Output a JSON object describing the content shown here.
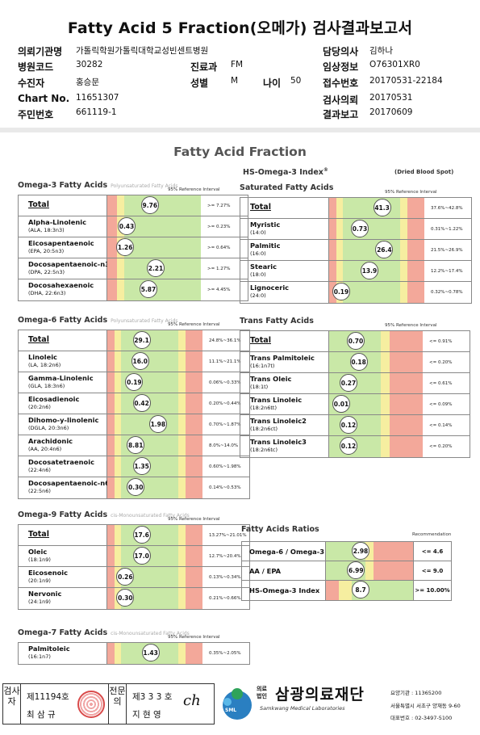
{
  "title": "Fatty Acid 5 Fraction(오메가) 검사결과보고서",
  "header": {
    "institution_label": "의뢰기관명",
    "institution_value": "가톨릭학원가톨릭대학교성빈센트병원",
    "inst_code_label": "병원코드",
    "inst_code_value": "30282",
    "collector_label": "수진자",
    "collector_value": "홍승문",
    "chart_label": "Chart No.",
    "chart_value": "11651307",
    "id_label": "주민번호",
    "id_value": "661119-1",
    "dept_label": "진료과",
    "dept_value": "FM",
    "sex_label": "성별",
    "sex_value": "M",
    "age_label": "나이",
    "age_value": "50",
    "doctor_label": "담당의사",
    "doctor_value": "김하나",
    "clinical_label": "임상정보",
    "clinical_value": "O76301XR0",
    "receipt_label": "접수번호",
    "receipt_value": "20170531-22184",
    "test_date_label": "검사의뢰",
    "test_date_value": "20170531",
    "report_date_label": "결과보고",
    "report_date_value": "20170609"
  },
  "report": {
    "title": "Fatty Acid Fraction",
    "subtitle": "HS-Omega-3 Index",
    "subtitle_sup": "®",
    "dbs": "(Dried Blood Spot)",
    "ref_label": "95% Reference Interval",
    "rec_label": "Recommendation"
  },
  "sections": [
    {
      "id": "omega3",
      "title": "Omega-3 Fatty Acids",
      "subtitle": "Polyunsaturated Fatty Acids",
      "rows": [
        {
          "name": "Total",
          "sub": "",
          "value": "9.76",
          "range": ">= 7.27%",
          "pos": 0.42
        },
        {
          "name": "Alpha-Linolenic",
          "sub": "(ALA, 18:3n3)",
          "value": "0.43",
          "range": ">= 0.23%",
          "pos": 0.1
        },
        {
          "name": "Eicosapentaenoic",
          "sub": "(EPA, 20:5n3)",
          "value": "1.26",
          "range": ">= 0.64%",
          "pos": 0.08
        },
        {
          "name": "Docosapentaenoic-n3",
          "sub": "(DPA, 22:5n3)",
          "value": "2.21",
          "range": ">= 1.27%",
          "pos": 0.5
        },
        {
          "name": "Docosahexaenoic",
          "sub": "(DHA, 22:6n3)",
          "value": "5.87",
          "range": ">= 4.45%",
          "pos": 0.4
        }
      ]
    },
    {
      "id": "saturated",
      "title": "Saturated Fatty Acids",
      "subtitle": "",
      "rows": [
        {
          "name": "Total",
          "sub": "",
          "value": "41.3",
          "range": "37.6%~42.8%",
          "pos": 0.55
        },
        {
          "name": "Myristic",
          "sub": "(14:0)",
          "value": "0.73",
          "range": "0.31%~1.22%",
          "pos": 0.25
        },
        {
          "name": "Palmitic",
          "sub": "(16:0)",
          "value": "26.4",
          "range": "21.5%~26.9%",
          "pos": 0.58
        },
        {
          "name": "Stearic",
          "sub": "(18:0)",
          "value": "13.9",
          "range": "12.2%~17.4%",
          "pos": 0.38
        },
        {
          "name": "Lignoceric",
          "sub": "(24:0)",
          "value": "0.19",
          "range": "0.32%~0.78%",
          "pos": 0.0
        }
      ]
    },
    {
      "id": "omega6",
      "title": "Omega-6 Fatty Acids",
      "subtitle": "Polyunsaturated Fatty Acids",
      "rows": [
        {
          "name": "Total",
          "sub": "",
          "value": "29.1",
          "range": "24.8%~36.1%",
          "pos": 0.3
        },
        {
          "name": "Linoleic",
          "sub": "(LA, 18:2n6)",
          "value": "16.0",
          "range": "11.1%~21.1%",
          "pos": 0.28
        },
        {
          "name": "Gamma-Linolenic",
          "sub": "(GLA, 18:3n6)",
          "value": "0.19",
          "range": "0.06%~0.33%",
          "pos": 0.2
        },
        {
          "name": "Eicosadienoic",
          "sub": "(20:2n6)",
          "value": "0.42",
          "range": "0.20%~0.44%",
          "pos": 0.3
        },
        {
          "name": "Dihomo-y-linolenic",
          "sub": "(DGLA, 20:3n6)",
          "value": "1.98",
          "range": "0.70%~1.87%",
          "pos": 0.52
        },
        {
          "name": "Arachidonic",
          "sub": "(AA, 20:4n6)",
          "value": "8.81",
          "range": "8.0%~14.0%",
          "pos": 0.22
        },
        {
          "name": "Docosatetraenoic",
          "sub": "(22:4n6)",
          "value": "1.35",
          "range": "0.60%~1.98%",
          "pos": 0.3
        },
        {
          "name": "Docosapentaenoic-n6",
          "sub": "(22:5n6)",
          "value": "0.30",
          "range": "0.14%~0.53%",
          "pos": 0.22
        }
      ]
    },
    {
      "id": "trans",
      "title": "Trans Fatty Acids",
      "subtitle": "",
      "rows": [
        {
          "name": "Total",
          "sub": "",
          "value": "0.70",
          "range": "<= 0.91%",
          "pos": 0.2
        },
        {
          "name": "Trans Palmitoleic",
          "sub": "(16:1n7t)",
          "value": "0.18",
          "range": "<= 0.20%",
          "pos": 0.24
        },
        {
          "name": "Trans Oleic",
          "sub": "(18:1t)",
          "value": "0.27",
          "range": "<= 0.61%",
          "pos": 0.1
        },
        {
          "name": "Trans Linoleic",
          "sub": "(18:2n6tt)",
          "value": "0.01",
          "range": "<= 0.09%",
          "pos": 0.0
        },
        {
          "name": "Trans Linoleic2",
          "sub": "(18:2n6ct)",
          "value": "0.12",
          "range": "<= 0.14%",
          "pos": 0.1
        },
        {
          "name": "Trans Linoleic3",
          "sub": "(18:2n6tc)",
          "value": "0.12",
          "range": "<= 0.20%",
          "pos": 0.1
        }
      ]
    },
    {
      "id": "omega9",
      "title": "Omega-9 Fatty Acids",
      "subtitle": "cis-Monounsaturated Fatty Acids",
      "rows": [
        {
          "name": "Total",
          "sub": "",
          "value": "17.6",
          "range": "13.27%~21.01%",
          "pos": 0.3
        },
        {
          "name": "Oleic",
          "sub": "(18:1n9)",
          "value": "17.0",
          "range": "12.7%~20.4%",
          "pos": 0.3
        },
        {
          "name": "Eicosenoic",
          "sub": "(20:1n9)",
          "value": "0.26",
          "range": "0.13%~0.34%",
          "pos": 0.08
        },
        {
          "name": "Nervonic",
          "sub": "(24:1n9)",
          "value": "0.30",
          "range": "0.21%~0.66%",
          "pos": 0.08
        }
      ]
    },
    {
      "id": "omega7",
      "title": "Omega-7 Fatty Acids",
      "subtitle": "cis-Monounsaturated Fatty Acids",
      "rows": [
        {
          "name": "Palmitoleic",
          "sub": "(16:1n7)",
          "value": "1.43",
          "range": "0.35%~2.05%",
          "pos": 0.42
        }
      ]
    }
  ],
  "ratios": {
    "title": "Fatty Acids Ratios",
    "rows": [
      {
        "name": "Omega-6 / Omega-3",
        "value": "2.98",
        "rec": "<= 4.6",
        "pos": 0.22
      },
      {
        "name": "AA / EPA",
        "value": "6.99",
        "rec": "<= 9.0",
        "pos": 0.15
      },
      {
        "name": "HS-Omega-3 Index",
        "value": "8.7",
        "rec": ">= 10.00%",
        "pos": 0.22
      }
    ]
  },
  "footer": {
    "box1_vertical": "검사자",
    "box1_line1": "제11194호",
    "box1_line2": "최 삼 규",
    "box2_vertical": "전문의",
    "box2_line1": "제3 3 3 호",
    "box2_line2": "지 현 영",
    "logo_text": "SML",
    "org_prefix": "의료\n법인",
    "org_name": "삼광의료재단",
    "org_en": "Samkwang Medical Laboratories",
    "info1": "요양기관 : 11365200",
    "info2": "서울특별시 서초구 양재동 9-60",
    "info3": "대표번호 : 02-3497-5100"
  }
}
